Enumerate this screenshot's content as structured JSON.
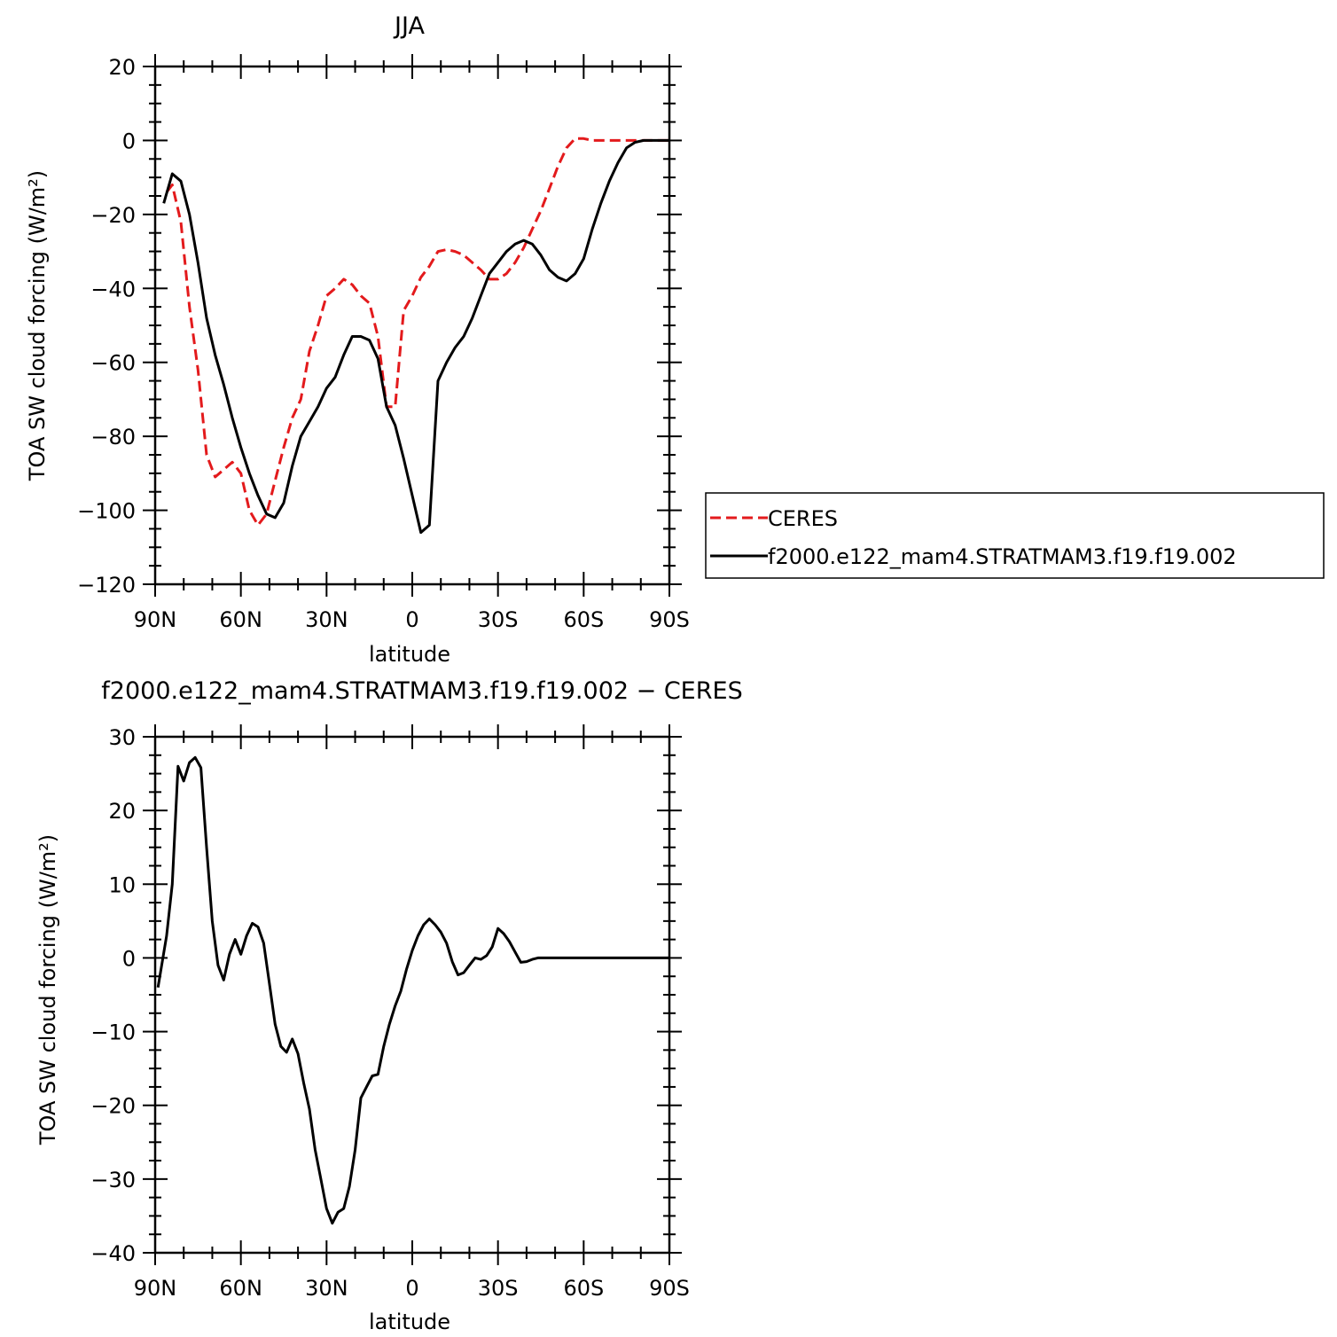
{
  "chart_data": [
    {
      "type": "line",
      "title": "JJA",
      "xlabel": "latitude",
      "ylabel": "TOA SW cloud forcing (W/m²)",
      "xlim": [
        90,
        -90
      ],
      "ylim": [
        -120,
        20
      ],
      "xticks": [
        {
          "value": 90,
          "label": "90N"
        },
        {
          "value": 60,
          "label": "60N"
        },
        {
          "value": 30,
          "label": "30N"
        },
        {
          "value": 0,
          "label": "0"
        },
        {
          "value": -30,
          "label": "30S"
        },
        {
          "value": -60,
          "label": "60S"
        },
        {
          "value": -90,
          "label": "90S"
        }
      ],
      "yticks": [
        20,
        0,
        -20,
        -40,
        -60,
        -80,
        -100,
        -120
      ],
      "ytick_labels": [
        "20",
        "0",
        "−20",
        "−40",
        "−60",
        "−80",
        "−100",
        "−120"
      ],
      "legend": "right",
      "series": [
        {
          "name": "CERES",
          "color": "#e31a1c",
          "dash": "dashed",
          "x": [
            86,
            84,
            81,
            78,
            75,
            72,
            69,
            66,
            63,
            60,
            57,
            54,
            51,
            48,
            45,
            42,
            39,
            36,
            33,
            30,
            27,
            24,
            21,
            18,
            15,
            12,
            9,
            6,
            3,
            0,
            -3,
            -6,
            -9,
            -12,
            -15,
            -18,
            -21,
            -24,
            -27,
            -30,
            -33,
            -36,
            -39,
            -42,
            -45,
            -48,
            -51,
            -54,
            -57,
            -60,
            -63,
            -66,
            -69,
            -72,
            -75,
            -78,
            -81,
            -84,
            -87,
            -90
          ],
          "y": [
            -14,
            -12,
            -22,
            -45,
            -62,
            -85,
            -91,
            -89,
            -87,
            -90,
            -100,
            -104,
            -101,
            -92,
            -83,
            -75,
            -70,
            -57,
            -50,
            -42,
            -40,
            -37.5,
            -39,
            -42,
            -44,
            -53,
            -72,
            -72,
            -46,
            -42,
            -37,
            -34,
            -30,
            -29.5,
            -30,
            -31,
            -33,
            -35,
            -37.5,
            -37.5,
            -36,
            -33,
            -29,
            -24,
            -19,
            -13,
            -7,
            -2,
            0.5,
            0.5,
            0,
            0,
            0,
            0,
            0,
            0,
            0,
            0,
            0,
            0
          ]
        },
        {
          "name": "f2000.e122_mam4.STRATMAM3.f19.f19.002",
          "color": "#000000",
          "dash": "solid",
          "x": [
            87,
            84,
            81,
            78,
            75,
            72,
            69,
            66,
            63,
            60,
            57,
            54,
            51,
            48,
            45,
            42,
            39,
            36,
            33,
            30,
            27,
            24,
            21,
            18,
            15,
            12,
            9,
            6,
            3,
            0,
            -3,
            -6,
            -9,
            -12,
            -15,
            -18,
            -21,
            -24,
            -27,
            -30,
            -33,
            -36,
            -39,
            -42,
            -45,
            -48,
            -51,
            -54,
            -57,
            -60,
            -63,
            -66,
            -69,
            -72,
            -75,
            -78,
            -81,
            -84,
            -87,
            -90
          ],
          "y": [
            -17,
            -9,
            -11,
            -20,
            -33,
            -48,
            -58,
            -66,
            -75,
            -83,
            -90,
            -96,
            -101,
            -102,
            -98,
            -88,
            -80,
            -76,
            -72,
            -67,
            -64,
            -58,
            -53,
            -53,
            -54,
            -59,
            -72,
            -77,
            -86,
            -96,
            -106,
            -104,
            -65,
            -60,
            -56,
            -53,
            -48,
            -42,
            -36,
            -33,
            -30,
            -28,
            -27,
            -28,
            -31,
            -35,
            -37,
            -38,
            -36,
            -32,
            -24,
            -17,
            -11,
            -6,
            -2,
            -0.5,
            0,
            0,
            0,
            0
          ]
        }
      ]
    },
    {
      "type": "line",
      "title": "f2000.e122_mam4.STRATMAM3.f19.f19.002  −  CERES",
      "xlabel": "latitude",
      "ylabel": "TOA SW cloud forcing (W/m²)",
      "xlim": [
        90,
        -90
      ],
      "ylim": [
        -40,
        30
      ],
      "xticks": [
        {
          "value": 90,
          "label": "90N"
        },
        {
          "value": 60,
          "label": "60N"
        },
        {
          "value": 30,
          "label": "30N"
        },
        {
          "value": 0,
          "label": "0"
        },
        {
          "value": -30,
          "label": "30S"
        },
        {
          "value": -60,
          "label": "60S"
        },
        {
          "value": -90,
          "label": "90S"
        }
      ],
      "yticks": [
        30,
        20,
        10,
        0,
        -10,
        -20,
        -30,
        -40
      ],
      "ytick_labels": [
        "30",
        "20",
        "10",
        "0",
        "−10",
        "−20",
        "−30",
        "−40"
      ],
      "series": [
        {
          "color": "#000000",
          "dash": "solid",
          "x": [
            89,
            86,
            84,
            82,
            80,
            78,
            76,
            74,
            72,
            70,
            68,
            66,
            64,
            62,
            60,
            58,
            56,
            54,
            52,
            50,
            48,
            46,
            44,
            42,
            40,
            38,
            36,
            34,
            32,
            30,
            28,
            26,
            24,
            22,
            20,
            18,
            16,
            14,
            12,
            10,
            8,
            6,
            4,
            2,
            0,
            -2,
            -4,
            -6,
            -8,
            -10,
            -12,
            -14,
            -16,
            -18,
            -20,
            -22,
            -24,
            -26,
            -28,
            -30,
            -32,
            -34,
            -36,
            -38,
            -40,
            -42,
            -44,
            -46,
            -48,
            -50,
            -52,
            -54,
            -56,
            -58,
            -60,
            -62,
            -64,
            -66,
            -68,
            -70,
            -72,
            -74,
            -76,
            -78,
            -80,
            -82,
            -84,
            -86,
            -88,
            -90
          ],
          "y": [
            -4,
            3,
            10,
            26,
            24,
            26.5,
            27.2,
            25.8,
            15,
            5,
            -1,
            -3,
            0.5,
            2.5,
            0.5,
            3,
            4.7,
            4.2,
            2,
            -3.5,
            -9,
            -12,
            -12.8,
            -11,
            -13,
            -17,
            -20.5,
            -26,
            -30,
            -34,
            -36,
            -34.5,
            -34,
            -31,
            -26,
            -19,
            -17.5,
            -16,
            -15.8,
            -12,
            -9,
            -6.5,
            -4.5,
            -1.5,
            1,
            3,
            4.5,
            5.3,
            4.5,
            3.5,
            2,
            -0.5,
            -2.3,
            -2,
            -1,
            0,
            -0.2,
            0.3,
            1.5,
            4,
            3.3,
            2.2,
            0.8,
            -0.6,
            -0.5,
            -0.2,
            0,
            0,
            0,
            0,
            0,
            0,
            0,
            0,
            0,
            0,
            0,
            0,
            0,
            0,
            0,
            0,
            0,
            0,
            0,
            0,
            0,
            0,
            0,
            0
          ]
        }
      ]
    }
  ]
}
